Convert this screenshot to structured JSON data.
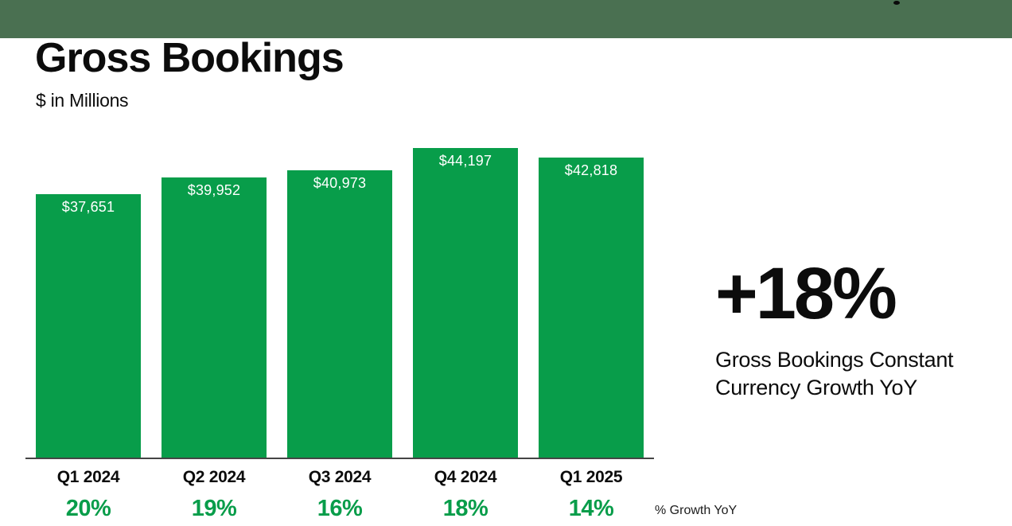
{
  "title": "Gross Bookings",
  "subtitle": "$ in Millions",
  "chart_data": {
    "type": "bar",
    "title": "Gross Bookings",
    "units": "$ in Millions",
    "categories": [
      "Q1 2024",
      "Q2 2024",
      "Q3 2024",
      "Q4 2024",
      "Q1 2025"
    ],
    "values": [
      37651,
      39952,
      40973,
      44197,
      42818
    ],
    "value_labels": [
      "$37,651",
      "$39,952",
      "$40,973",
      "$44,197",
      "$42,818"
    ],
    "growth_yoy_pct": [
      "20%",
      "19%",
      "16%",
      "18%",
      "14%"
    ],
    "growth_caption": "% Growth YoY",
    "ylim": [
      0,
      44197
    ],
    "grid": false,
    "legend_position": "none",
    "bar_color": "#089d4a",
    "value_label_color": "#ffffff"
  },
  "highlight": {
    "value": "+18%",
    "caption_lines": [
      "Gross Bookings Constant",
      "Currency Growth YoY"
    ]
  },
  "colors": {
    "header_green": "#4a7051",
    "bar_green": "#089d4a",
    "pct_green": "#089d4a",
    "axis_line": "#454545",
    "text_black": "#0c0c0c"
  }
}
